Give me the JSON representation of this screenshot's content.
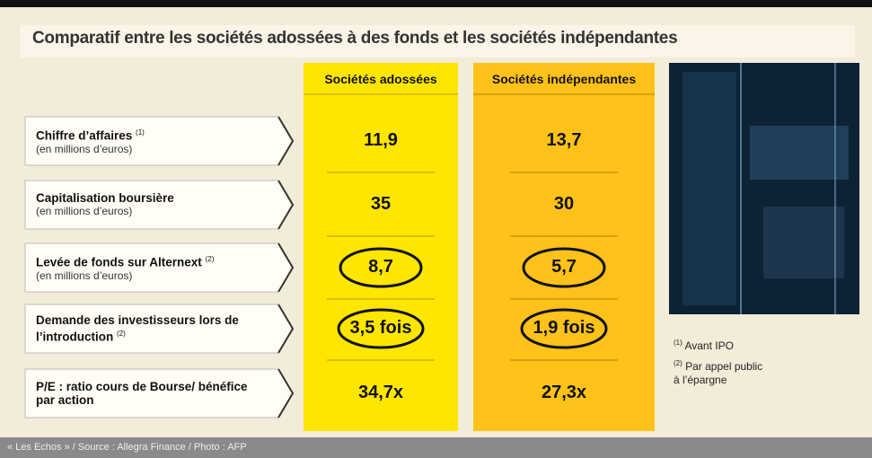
{
  "title": "Comparatif entre les sociétés adossées à des fonds et les sociétés indépendantes",
  "table": {
    "columns": [
      "Sociétés adossées",
      "Sociétés indépendantes"
    ],
    "rows": [
      {
        "label": "Chiffre d’affaires",
        "note": "(1)",
        "sublabel": "(en millions d’euros)",
        "values": [
          "11,9",
          "13,7"
        ],
        "circled": false
      },
      {
        "label": "Capitalisation boursière",
        "sublabel": "(en millions d’euros)",
        "values": [
          "35",
          "30"
        ],
        "circled": false
      },
      {
        "label": "Levée de fonds sur Alternext",
        "note": "(2)",
        "sublabel": "(en millions d’euros)",
        "values": [
          "8,7",
          "5,7"
        ],
        "circled": true
      },
      {
        "label": "Demande des investisseurs lors de l’introduction",
        "note": "(2)",
        "values": [
          "3,5 fois",
          "1,9 fois"
        ],
        "circled": true
      },
      {
        "label": "P/E : ratio cours de Bourse/ bénéfice par action",
        "values": [
          "34,7x",
          "27,3x"
        ],
        "circled": false
      }
    ]
  },
  "notes": [
    {
      "marker": "(1)",
      "text": "Avant IPO"
    },
    {
      "marker": "(2)",
      "text": "Par appel public à l’épargne"
    }
  ],
  "source": "« Les Echos » / Source : Allegra Finance / Photo : AFP"
}
